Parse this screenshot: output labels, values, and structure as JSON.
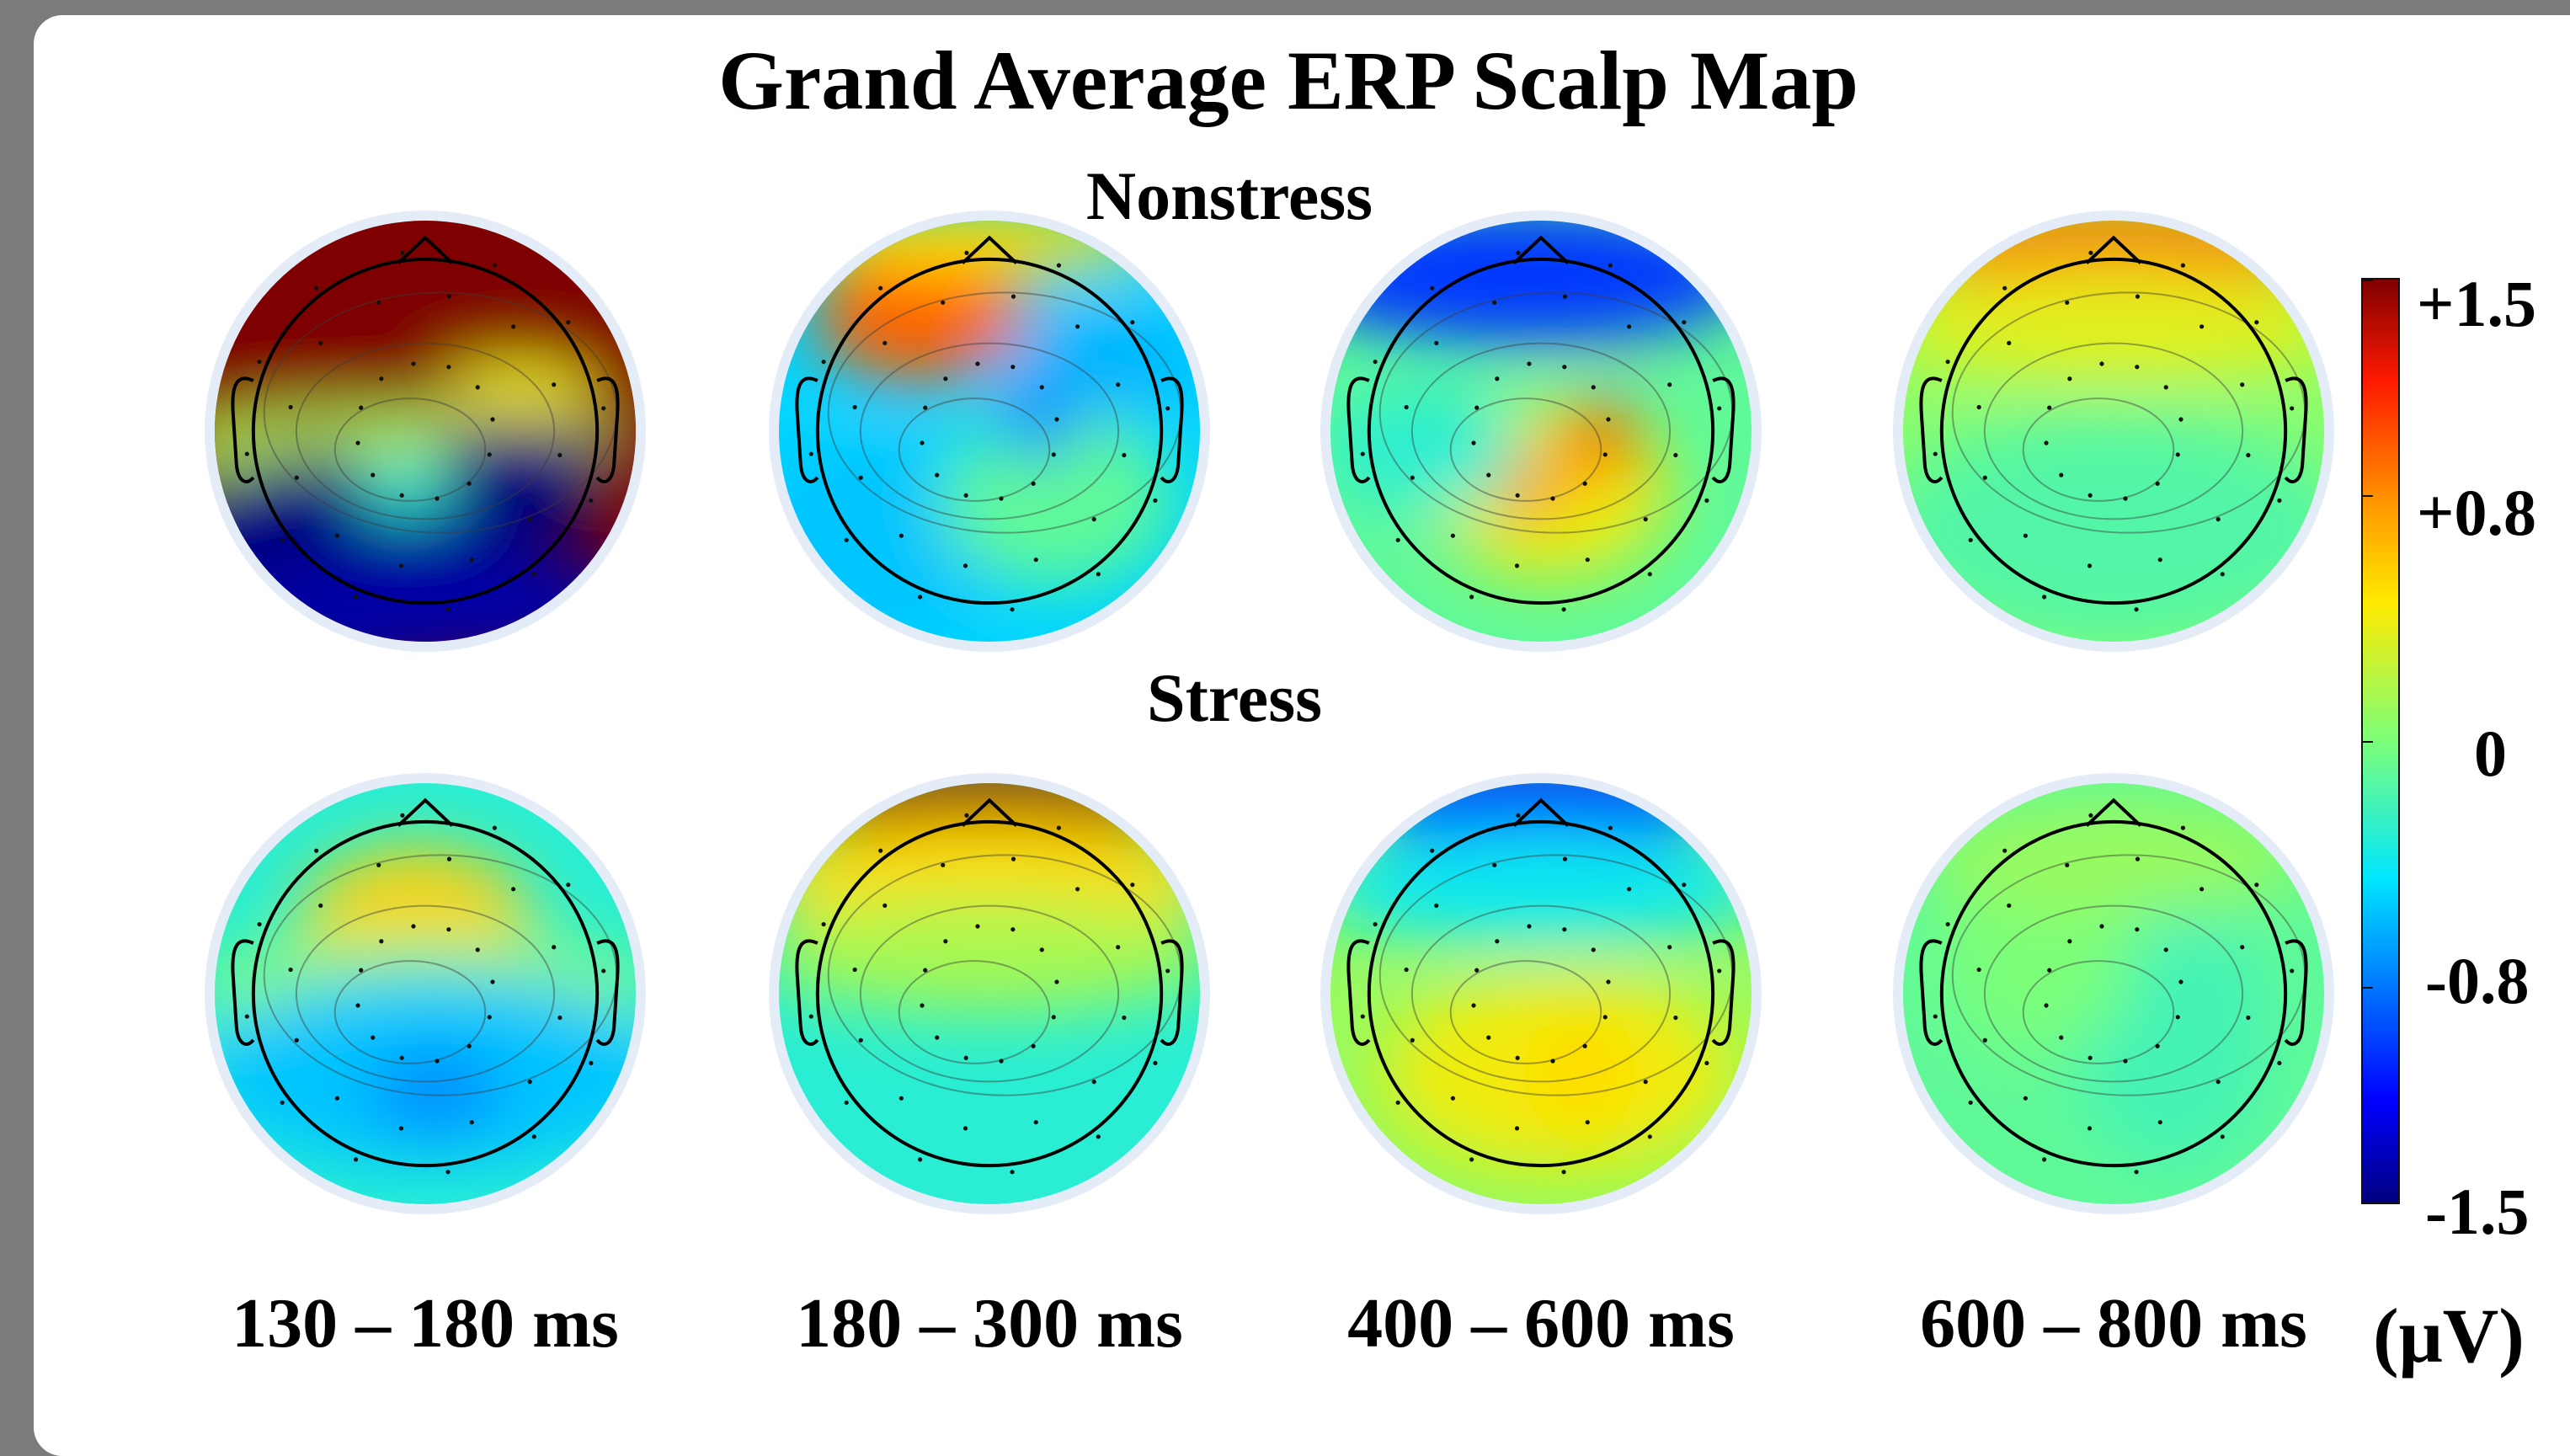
{
  "title": "Grand Average ERP Scalp Map",
  "rows": [
    {
      "label": "Nonstress"
    },
    {
      "label": "Stress"
    }
  ],
  "time_windows": [
    "130 – 180 ms",
    "180 – 300 ms",
    "400 – 600 ms",
    "600 – 800 ms"
  ],
  "colorbar": {
    "colormap": "jet",
    "min": -1.5,
    "max": 1.5,
    "tick_labels": [
      "+1.5",
      "+0.8",
      "0",
      "-0.8",
      "-1.5"
    ],
    "tick_values": [
      1.5,
      0.8,
      0,
      -0.8,
      -1.5
    ],
    "unit": "(μV)"
  },
  "maps": [
    {
      "condition": "Nonstress",
      "window": "130 – 180 ms",
      "pattern": "strong frontal positivity (dark red), strong posterior negativity (dark blue)"
    },
    {
      "condition": "Nonstress",
      "window": "180 – 300 ms",
      "pattern": "left-frontal orange positivity, widespread light-blue negativity"
    },
    {
      "condition": "Nonstress",
      "window": "400 – 600 ms",
      "pattern": "frontal blue negativity, central-parietal orange positivity"
    },
    {
      "condition": "Nonstress",
      "window": "600 – 800 ms",
      "pattern": "frontal orange positivity, near-zero elsewhere"
    },
    {
      "condition": "Stress",
      "window": "130 – 180 ms",
      "pattern": "fronto-central yellow/orange positivity, posterior light-blue negativity"
    },
    {
      "condition": "Stress",
      "window": "180 – 300 ms",
      "pattern": "frontal red positivity, posterior near-zero"
    },
    {
      "condition": "Stress",
      "window": "400 – 600 ms",
      "pattern": "frontal blue negativity, parietal yellow positivity"
    },
    {
      "condition": "Stress",
      "window": "600 – 800 ms",
      "pattern": "near-zero green across scalp"
    }
  ],
  "colors": {
    "background_frame": "#7b7b7b",
    "panel": "#ffffff",
    "head_halo": "#e4ecf7"
  }
}
